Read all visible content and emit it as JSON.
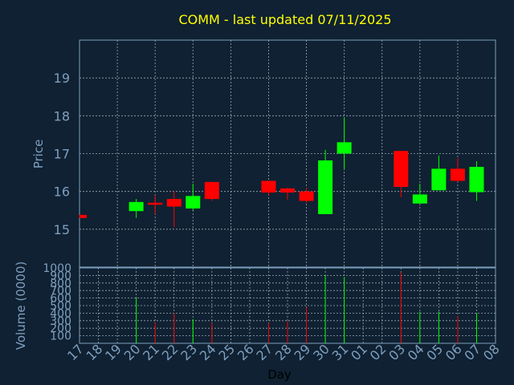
{
  "title": "COMM - last updated 07/11/2025",
  "chart_data": {
    "type": "candlestick",
    "title": "COMM - last updated 07/11/2025",
    "xlabel": "Day",
    "price_ylabel": "Price",
    "volume_ylabel": "Volume (0000)",
    "x_tick_labels": [
      "17",
      "18",
      "19",
      "20",
      "21",
      "22",
      "23",
      "24",
      "25",
      "26",
      "27",
      "28",
      "29",
      "30",
      "31",
      "01",
      "02",
      "03",
      "04",
      "05",
      "06",
      "07",
      "08"
    ],
    "price_ylim": [
      14,
      20
    ],
    "price_ticks": [
      15,
      16,
      17,
      18,
      19
    ],
    "volume_ylim": [
      0,
      1000
    ],
    "volume_ticks": [
      100,
      200,
      300,
      400,
      500,
      600,
      700,
      800,
      900,
      1000
    ],
    "grid": true,
    "colors": {
      "up": "#00ff00",
      "down": "#ff0000",
      "background": "#0f2132",
      "title": "#ffff00",
      "axis_text": "#7f9fbf"
    },
    "candles": [
      {
        "day": 17,
        "open": 15.38,
        "close": 15.3,
        "high": 15.38,
        "low": 15.3,
        "volume": 0
      },
      {
        "day": 20,
        "open": 15.48,
        "close": 15.72,
        "high": 15.8,
        "low": 15.3,
        "volume": 600
      },
      {
        "day": 21,
        "open": 15.7,
        "close": 15.65,
        "high": 15.9,
        "low": 15.4,
        "volume": 280
      },
      {
        "day": 22,
        "open": 15.8,
        "close": 15.6,
        "high": 16.0,
        "low": 15.05,
        "volume": 400
      },
      {
        "day": 23,
        "open": 15.55,
        "close": 15.88,
        "high": 16.2,
        "low": 15.5,
        "volume": 320
      },
      {
        "day": 24,
        "open": 16.25,
        "close": 15.8,
        "high": 16.25,
        "low": 15.75,
        "volume": 270
      },
      {
        "day": 27,
        "open": 16.28,
        "close": 15.97,
        "high": 16.28,
        "low": 15.9,
        "volume": 270
      },
      {
        "day": 28,
        "open": 16.08,
        "close": 15.97,
        "high": 16.1,
        "low": 15.78,
        "volume": 290
      },
      {
        "day": 29,
        "open": 16.0,
        "close": 15.75,
        "high": 16.1,
        "low": 15.7,
        "volume": 480
      },
      {
        "day": 30,
        "open": 15.4,
        "close": 16.82,
        "high": 17.1,
        "low": 15.4,
        "volume": 900
      },
      {
        "day": 31,
        "open": 17.0,
        "close": 17.3,
        "high": 17.95,
        "low": 16.6,
        "volume": 880
      },
      {
        "day": 3,
        "open": 17.07,
        "close": 16.12,
        "high": 17.07,
        "low": 15.85,
        "volume": 940
      },
      {
        "day": 4,
        "open": 15.68,
        "close": 15.92,
        "high": 16.2,
        "low": 15.68,
        "volume": 420
      },
      {
        "day": 5,
        "open": 16.03,
        "close": 16.6,
        "high": 16.95,
        "low": 16.03,
        "volume": 420
      },
      {
        "day": 6,
        "open": 16.6,
        "close": 16.28,
        "high": 16.88,
        "low": 16.25,
        "volume": 360
      },
      {
        "day": 7,
        "open": 15.98,
        "close": 16.65,
        "high": 16.8,
        "low": 15.75,
        "volume": 400
      }
    ]
  }
}
